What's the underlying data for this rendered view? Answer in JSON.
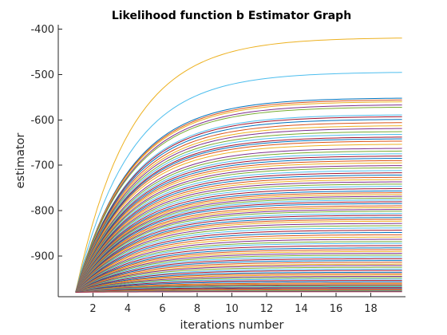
{
  "chart_data": {
    "type": "line",
    "title": "Likelihood function b Estimator Graph",
    "xlabel": "iterations number",
    "ylabel": "estimator",
    "xlim": [
      0,
      20
    ],
    "ylim": [
      -990,
      -390
    ],
    "xticks": [
      "2",
      "4",
      "6",
      "8",
      "10",
      "12",
      "14",
      "16",
      "18"
    ],
    "yticks": [
      "-400",
      "-500",
      "-600",
      "-700",
      "-800",
      "-900"
    ],
    "grid": false,
    "legend": "none",
    "x_start": 1,
    "x_end": 19.8,
    "y_start": -980,
    "series_count": 100,
    "convergence_rate": 0.32,
    "asymptotes": [
      -418,
      -494,
      -551,
      -555,
      -559,
      -566,
      -571,
      -588,
      -592,
      -598,
      -605,
      -612,
      -618,
      -625,
      -631,
      -637,
      -641,
      -646,
      -653,
      -662,
      -668,
      -674,
      -679,
      -684,
      -689,
      -694,
      -700,
      -705,
      -711,
      -716,
      -721,
      -726,
      -731,
      -736,
      -741,
      -746,
      -751,
      -756,
      -760,
      -764,
      -768,
      -772,
      -776,
      -780,
      -784,
      -789,
      -793,
      -797,
      -801,
      -806,
      -810,
      -815,
      -819,
      -823,
      -828,
      -833,
      -838,
      -843,
      -848,
      -853,
      -858,
      -863,
      -868,
      -872,
      -877,
      -882,
      -886,
      -890,
      -894,
      -898,
      -902,
      -906,
      -910,
      -914,
      -918,
      -921,
      -925,
      -929,
      -932,
      -936,
      -939,
      -942,
      -945,
      -948,
      -951,
      -954,
      -957,
      -960,
      -962,
      -964,
      -966,
      -968,
      -970,
      -972,
      -973,
      -975,
      -976,
      -977,
      -978,
      -979
    ],
    "palette": [
      "#0072BD",
      "#D95319",
      "#EDB120",
      "#7E2F8E",
      "#77AC30",
      "#4DBEEE",
      "#A2142F"
    ],
    "highlight_colors": [
      "#EDB120",
      "#4DBEEE"
    ]
  }
}
